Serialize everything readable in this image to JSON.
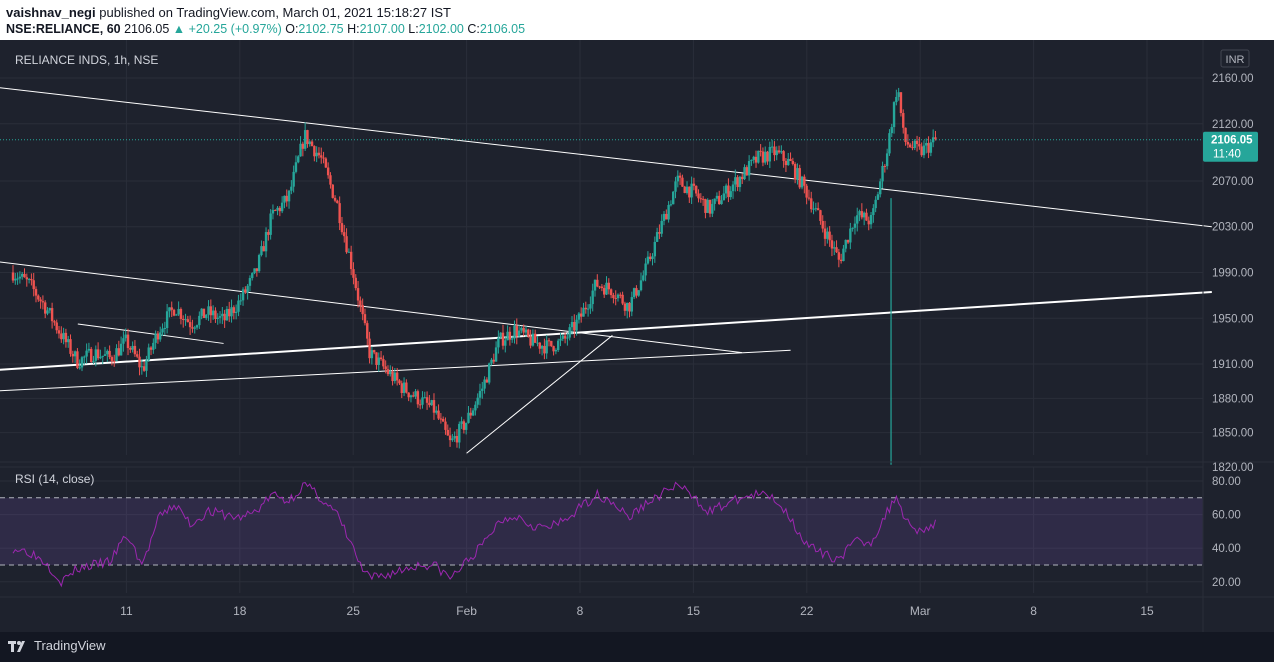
{
  "header": {
    "author": "vaishnav_negi",
    "published_text": "published on TradingView.com, March 01, 2021 15:18:27 IST",
    "symbol": "NSE:RELIANCE, 60",
    "last": "2106.05",
    "change": "▲ +20.25 (+0.97%)",
    "o_label": "O:",
    "o": "2102.75",
    "h_label": "H:",
    "h": "2107.00",
    "l_label": "L:",
    "l": "2102.00",
    "c_label": "C:",
    "c": "2106.05"
  },
  "pane_title": "RELIANCE INDS, 1h, NSE",
  "currency": "INR",
  "price_badge": {
    "price": "2106.05",
    "countdown": "11:40"
  },
  "rsi_title": "RSI (14, close)",
  "footer_brand": "TradingView",
  "colors": {
    "up": "#26a69a",
    "down": "#ef5350",
    "rsi": "#9c27b0",
    "background": "#1e222d"
  },
  "chart_data": [
    {
      "type": "candlestick",
      "title": "RELIANCE INDS, 1h, NSE",
      "y_ticks": [
        2160,
        2120,
        2070,
        2030,
        1990,
        1950,
        1910,
        1880,
        1850,
        1820
      ],
      "y_tick_labels": [
        "2160.00",
        "2120.00",
        "2070.00",
        "2030.00",
        "1990.00",
        "1950.00",
        "1910.00",
        "1880.00",
        "1850.00",
        "1820.00"
      ],
      "x_tick_labels": [
        "11",
        "18",
        "25",
        "Feb",
        "8",
        "15",
        "22",
        "Mar",
        "8",
        "15"
      ],
      "x_tick_days": [
        11,
        18,
        25,
        32,
        39,
        46,
        53,
        60,
        67,
        74
      ],
      "x_unit": "day since Jan 1 2021",
      "ylim": [
        1800,
        2175
      ],
      "current_price": 2106.05,
      "series": [
        {
          "name": "price (approx. close)",
          "points": [
            [
              4,
              1990
            ],
            [
              5,
              1980
            ],
            [
              6,
              1960
            ],
            [
              7,
              1935
            ],
            [
              8,
              1912
            ],
            [
              9,
              1920
            ],
            [
              10,
              1915
            ],
            [
              11,
              1930
            ],
            [
              12,
              1905
            ],
            [
              13,
              1940
            ],
            [
              14,
              1960
            ],
            [
              15,
              1945
            ],
            [
              16,
              1955
            ],
            [
              17,
              1948
            ],
            [
              18,
              1965
            ],
            [
              19,
              1990
            ],
            [
              20,
              2040
            ],
            [
              21,
              2055
            ],
            [
              22,
              2110
            ],
            [
              23,
              2090
            ],
            [
              24,
              2050
            ],
            [
              25,
              1990
            ],
            [
              25.5,
              1955
            ],
            [
              26,
              1920
            ],
            [
              27,
              1905
            ],
            [
              28,
              1890
            ],
            [
              29,
              1880
            ],
            [
              30,
              1870
            ],
            [
              31,
              1840
            ],
            [
              32,
              1860
            ],
            [
              33,
              1890
            ],
            [
              34,
              1930
            ],
            [
              35,
              1940
            ],
            [
              36,
              1930
            ],
            [
              37,
              1925
            ],
            [
              38,
              1930
            ],
            [
              39,
              1950
            ],
            [
              40,
              1980
            ],
            [
              41,
              1975
            ],
            [
              42,
              1960
            ],
            [
              43,
              1990
            ],
            [
              44,
              2030
            ],
            [
              45,
              2070
            ],
            [
              46,
              2060
            ],
            [
              47,
              2045
            ],
            [
              48,
              2060
            ],
            [
              49,
              2075
            ],
            [
              50,
              2090
            ],
            [
              51,
              2095
            ],
            [
              52,
              2085
            ],
            [
              53,
              2060
            ],
            [
              54,
              2030
            ],
            [
              55,
              2000
            ],
            [
              56,
              2040
            ],
            [
              57,
              2035
            ],
            [
              58,
              2100
            ],
            [
              58.6,
              2155
            ],
            [
              59,
              2105
            ],
            [
              60,
              2095
            ],
            [
              61,
              2106.05
            ]
          ]
        }
      ],
      "spike": {
        "day": 58.2,
        "low": 1822
      },
      "trendlines": [
        {
          "from": [
            1,
            2155
          ],
          "to": [
            78,
            2030
          ]
        },
        {
          "from": [
            1,
            1903
          ],
          "to": [
            78,
            1973
          ]
        },
        {
          "from": [
            1,
            1885
          ],
          "to": [
            52,
            1922
          ]
        },
        {
          "from": [
            1,
            2003
          ],
          "to": [
            49,
            1920
          ]
        },
        {
          "from": [
            8,
            1945
          ],
          "to": [
            17,
            1928
          ]
        },
        {
          "from": [
            32,
            1832
          ],
          "to": [
            41,
            1935
          ]
        }
      ]
    },
    {
      "type": "line",
      "title": "RSI (14, close)",
      "y_ticks": [
        80,
        60,
        40,
        20
      ],
      "y_tick_labels": [
        "80.00",
        "60.00",
        "40.00",
        "20.00"
      ],
      "band": [
        30,
        70
      ],
      "ylim": [
        10,
        90
      ],
      "series": [
        {
          "name": "RSI",
          "points": [
            [
              4,
              40
            ],
            [
              5,
              38
            ],
            [
              6,
              32
            ],
            [
              7,
              20
            ],
            [
              8,
              28
            ],
            [
              9,
              30
            ],
            [
              10,
              32
            ],
            [
              11,
              48
            ],
            [
              12,
              30
            ],
            [
              13,
              58
            ],
            [
              14,
              66
            ],
            [
              15,
              54
            ],
            [
              16,
              62
            ],
            [
              17,
              60
            ],
            [
              18,
              58
            ],
            [
              19,
              62
            ],
            [
              20,
              72
            ],
            [
              21,
              68
            ],
            [
              22,
              78
            ],
            [
              23,
              70
            ],
            [
              24,
              60
            ],
            [
              25,
              40
            ],
            [
              25.5,
              28
            ],
            [
              26,
              22
            ],
            [
              27,
              24
            ],
            [
              28,
              27
            ],
            [
              29,
              30
            ],
            [
              30,
              30
            ],
            [
              31,
              22
            ],
            [
              32,
              32
            ],
            [
              33,
              42
            ],
            [
              34,
              56
            ],
            [
              35,
              60
            ],
            [
              36,
              54
            ],
            [
              37,
              52
            ],
            [
              38,
              56
            ],
            [
              39,
              64
            ],
            [
              40,
              72
            ],
            [
              41,
              68
            ],
            [
              42,
              58
            ],
            [
              43,
              66
            ],
            [
              44,
              72
            ],
            [
              45,
              78
            ],
            [
              46,
              70
            ],
            [
              47,
              62
            ],
            [
              48,
              66
            ],
            [
              49,
              70
            ],
            [
              50,
              72
            ],
            [
              51,
              70
            ],
            [
              52,
              58
            ],
            [
              53,
              42
            ],
            [
              54,
              36
            ],
            [
              55,
              34
            ],
            [
              56,
              44
            ],
            [
              57,
              44
            ],
            [
              58,
              62
            ],
            [
              58.6,
              72
            ],
            [
              59,
              58
            ],
            [
              60,
              50
            ],
            [
              61,
              55
            ]
          ]
        }
      ]
    }
  ]
}
